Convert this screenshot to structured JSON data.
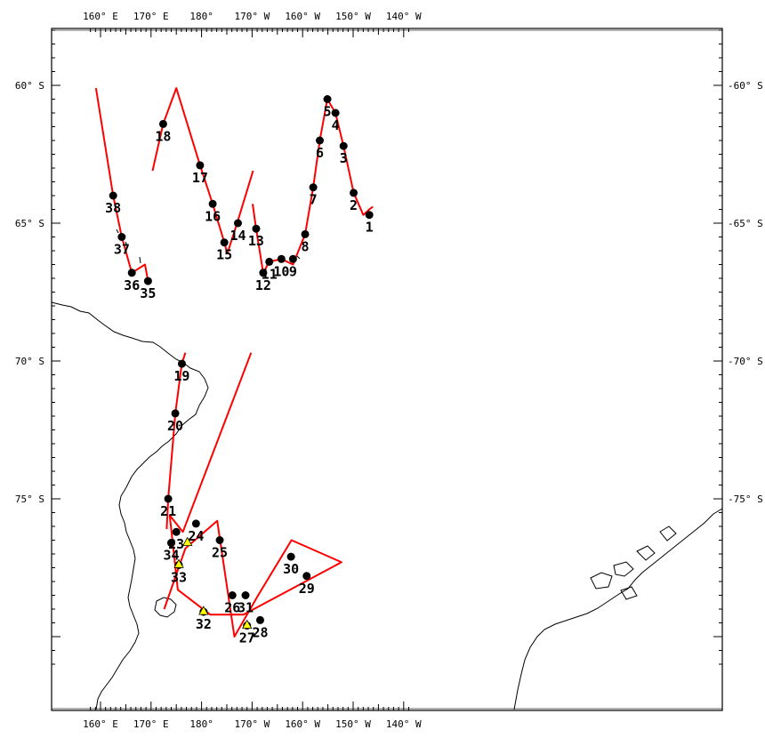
{
  "map": {
    "lon_range": [
      157.5,
      220.0
    ],
    "lat_range": [
      -78.5,
      -58.0
    ],
    "top_labels": [
      {
        "lon": 160,
        "text": "160° E"
      },
      {
        "lon": 170,
        "text": "170° E"
      },
      {
        "lon": 180,
        "text": "180°"
      },
      {
        "lon": 190,
        "text": "170° W"
      },
      {
        "lon": 200,
        "text": "160° W"
      },
      {
        "lon": 210,
        "text": "150° W"
      },
      {
        "lon": 220,
        "text": "140° W"
      }
    ],
    "bottom_labels": [
      {
        "lon": 160,
        "text": "160° E"
      },
      {
        "lon": 170,
        "text": "170° E"
      },
      {
        "lon": 180,
        "text": "180°"
      },
      {
        "lon": 190,
        "text": "170° W"
      },
      {
        "lon": 200,
        "text": "160° W"
      },
      {
        "lon": 210,
        "text": "150° W"
      },
      {
        "lon": 220,
        "text": "140° W"
      }
    ],
    "left_labels": [
      {
        "lat": -60,
        "text": "60° S"
      },
      {
        "lat": -65,
        "text": "65° S"
      },
      {
        "lat": -70,
        "text": "70° S"
      },
      {
        "lat": -75,
        "text": "75° S"
      }
    ],
    "right_labels": [
      {
        "lat": -60,
        "text": "-60° S"
      },
      {
        "lat": -65,
        "text": "-65° S"
      },
      {
        "lat": -70,
        "text": "-70° S"
      },
      {
        "lat": -75,
        "text": "-75° S"
      }
    ],
    "colors": {
      "track": "#ff0000",
      "station": "#000000",
      "triangle_fill": "#ffff00",
      "coast": "#000000"
    },
    "tracks": [
      [
        [
          159.1,
          -60.1
        ],
        [
          162.5,
          -64.0
        ],
        [
          164.2,
          -65.5
        ],
        [
          166.2,
          -66.8
        ],
        [
          168.8,
          -66.5
        ],
        [
          169.4,
          -67.1
        ]
      ],
      [
        [
          170.3,
          -63.1
        ],
        [
          172.4,
          -61.4
        ],
        [
          175.0,
          -60.1
        ],
        [
          179.7,
          -62.9
        ],
        [
          182.2,
          -64.3
        ],
        [
          184.5,
          -65.7
        ],
        [
          185.1,
          -66.1
        ],
        [
          187.2,
          -64.9
        ],
        [
          190.2,
          -63.1
        ]
      ],
      [
        [
          190.1,
          -64.3
        ],
        [
          190.8,
          -65.2
        ],
        [
          192.2,
          -66.8
        ],
        [
          193.4,
          -66.4
        ],
        [
          195.8,
          -66.3
        ],
        [
          198.1,
          -66.5
        ],
        [
          200.5,
          -65.4
        ],
        [
          202.1,
          -63.7
        ],
        [
          203.4,
          -62.0
        ],
        [
          204.9,
          -60.5
        ],
        [
          206.5,
          -61.0
        ],
        [
          208.1,
          -62.2
        ],
        [
          210.1,
          -63.9
        ],
        [
          212.0,
          -64.7
        ],
        [
          213.2,
          -64.5
        ],
        [
          213.9,
          -64.4
        ]
      ],
      [
        [
          176.8,
          -69.7
        ],
        [
          176.1,
          -70.1
        ],
        [
          174.8,
          -71.9
        ],
        [
          173.4,
          -75.0
        ],
        [
          173.1,
          -76.1
        ]
      ],
      [
        [
          189.8,
          -69.7
        ],
        [
          176.3,
          -76.2
        ],
        [
          173.7,
          -75.6
        ],
        [
          175.3,
          -78.3
        ],
        [
          181.7,
          -79.2
        ],
        [
          188.3,
          -79.2
        ],
        [
          207.7,
          -77.3
        ],
        [
          197.8,
          -76.5
        ],
        [
          191.2,
          -78.5
        ],
        [
          186.5,
          -80.0
        ],
        [
          183.1,
          -75.8
        ],
        [
          176.8,
          -76.8
        ],
        [
          172.6,
          -79.0
        ]
      ]
    ],
    "stations": [
      {
        "id": "1",
        "lon": 213.2,
        "lat": -64.7
      },
      {
        "id": "2",
        "lon": 210.1,
        "lat": -63.9
      },
      {
        "id": "3",
        "lon": 208.1,
        "lat": -62.2
      },
      {
        "id": "4",
        "lon": 206.5,
        "lat": -61.0
      },
      {
        "id": "5",
        "lon": 204.9,
        "lat": -60.5
      },
      {
        "id": "6",
        "lon": 203.4,
        "lat": -62.0
      },
      {
        "id": "7",
        "lon": 202.1,
        "lat": -63.7
      },
      {
        "id": "8",
        "lon": 200.5,
        "lat": -65.4
      },
      {
        "id": "9",
        "lon": 198.1,
        "lat": -66.3
      },
      {
        "id": "10",
        "lon": 195.8,
        "lat": -66.3
      },
      {
        "id": "11",
        "lon": 193.4,
        "lat": -66.4
      },
      {
        "id": "12",
        "lon": 192.2,
        "lat": -66.8
      },
      {
        "id": "13",
        "lon": 190.8,
        "lat": -65.2
      },
      {
        "id": "14",
        "lon": 187.2,
        "lat": -65.0
      },
      {
        "id": "15",
        "lon": 184.5,
        "lat": -65.7
      },
      {
        "id": "16",
        "lon": 182.2,
        "lat": -64.3
      },
      {
        "id": "17",
        "lon": 179.7,
        "lat": -62.9
      },
      {
        "id": "18",
        "lon": 172.4,
        "lat": -61.4
      },
      {
        "id": "19",
        "lon": 176.1,
        "lat": -70.1
      },
      {
        "id": "20",
        "lon": 174.8,
        "lat": -71.9
      },
      {
        "id": "21",
        "lon": 173.4,
        "lat": -75.0
      },
      {
        "id": "23",
        "lon": 175.0,
        "lat": -76.2
      },
      {
        "id": "24",
        "lon": 178.9,
        "lat": -75.9
      },
      {
        "id": "25",
        "lon": 183.6,
        "lat": -76.5
      },
      {
        "id": "26",
        "lon": 186.1,
        "lat": -78.5
      },
      {
        "id": "27",
        "lon": 189.0,
        "lat": -79.6
      },
      {
        "id": "28",
        "lon": 191.6,
        "lat": -79.4
      },
      {
        "id": "29",
        "lon": 200.8,
        "lat": -77.8
      },
      {
        "id": "30",
        "lon": 197.7,
        "lat": -77.1
      },
      {
        "id": "31",
        "lon": 188.7,
        "lat": -78.5
      },
      {
        "id": "32",
        "lon": 180.4,
        "lat": -79.1
      },
      {
        "id": "33",
        "lon": 175.5,
        "lat": -77.4
      },
      {
        "id": "34",
        "lon": 174.0,
        "lat": -76.6
      },
      {
        "id": "35",
        "lon": 169.4,
        "lat": -67.1
      },
      {
        "id": "36",
        "lon": 166.2,
        "lat": -66.8
      },
      {
        "id": "37",
        "lon": 164.2,
        "lat": -65.5
      },
      {
        "id": "38",
        "lon": 162.5,
        "lat": -64.0
      }
    ],
    "triangles": [
      {
        "name": "23",
        "lon": 177.2,
        "lat": -76.6
      },
      {
        "name": "32",
        "lon": 180.4,
        "lat": -79.1
      },
      {
        "name": "33",
        "lon": 175.5,
        "lat": -77.4
      },
      {
        "name": "27",
        "lon": 189.0,
        "lat": -79.6
      }
    ]
  }
}
